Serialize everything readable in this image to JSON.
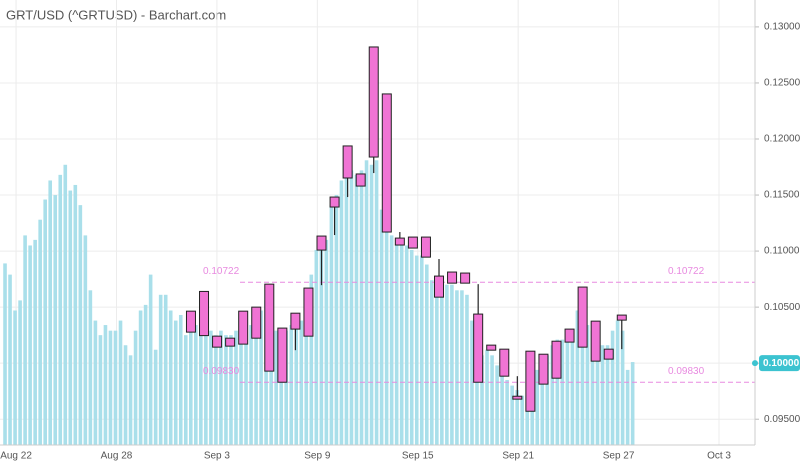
{
  "chart_data": {
    "type": "candlestick",
    "title": "GRT/USD (^GRTUSD) - Barchart.com",
    "xlim": [
      -0.96,
      44.15
    ],
    "xticks": [
      {
        "value": 0,
        "label": "Aug 22"
      },
      {
        "value": 6,
        "label": "Aug 28"
      },
      {
        "value": 12,
        "label": "Sep 3"
      },
      {
        "value": 18,
        "label": "Sep 9"
      },
      {
        "value": 24,
        "label": "Sep 15"
      },
      {
        "value": 30,
        "label": "Sep 21"
      },
      {
        "value": 36,
        "label": "Sep 27"
      },
      {
        "value": 42,
        "label": "Oct 3"
      }
    ],
    "ylim": [
      0.0927,
      0.1324
    ],
    "yticks": [
      {
        "value": 0.095,
        "label": "0.09500"
      },
      {
        "value": 0.1,
        "label": "0.10000"
      },
      {
        "value": 0.105,
        "label": "0.10500"
      },
      {
        "value": 0.11,
        "label": "0.11000"
      },
      {
        "value": 0.115,
        "label": "0.11500"
      },
      {
        "value": 0.12,
        "label": "0.12000"
      },
      {
        "value": 0.125,
        "label": "0.12500"
      },
      {
        "value": 0.13,
        "label": "0.13000"
      }
    ],
    "grid": true,
    "background_bars": {
      "color": "#a9dfea",
      "x": [
        -0.66,
        -0.36,
        -0.06,
        0.24,
        0.54,
        0.84,
        1.14,
        1.44,
        1.74,
        2.04,
        2.34,
        2.64,
        2.94,
        3.24,
        3.54,
        3.84,
        4.14,
        4.44,
        4.74,
        5.04,
        5.34,
        5.64,
        5.94,
        6.24,
        6.54,
        6.84,
        7.14,
        7.44,
        7.74,
        8.04,
        8.34,
        8.64,
        8.94,
        9.24,
        9.54,
        9.84,
        10.14,
        10.44,
        10.74,
        11.04,
        11.34,
        11.64,
        11.94,
        12.24,
        12.54,
        12.84,
        13.14,
        13.44,
        13.74,
        14.04,
        14.34,
        14.64,
        14.94,
        15.24,
        15.54,
        15.84,
        16.14,
        16.44,
        16.74,
        17.04,
        17.34,
        17.64,
        17.94,
        18.24,
        18.54,
        18.84,
        19.14,
        19.44,
        19.74,
        20.04,
        20.34,
        20.64,
        20.94,
        21.24,
        21.54,
        21.84,
        22.14,
        22.44,
        22.74,
        23.04,
        23.34,
        23.64,
        23.94,
        24.24,
        24.54,
        24.84,
        25.14,
        25.44,
        25.74,
        26.04,
        26.34,
        26.64,
        26.94,
        27.24,
        27.54,
        27.84,
        28.14,
        28.44,
        28.74,
        29.04,
        29.34,
        29.64,
        29.94,
        30.24,
        30.54,
        30.84,
        31.14,
        31.44,
        31.74,
        32.04,
        32.34,
        32.64,
        32.94,
        33.24,
        33.54,
        33.84,
        34.14,
        34.44,
        34.74,
        35.04,
        35.34,
        35.64,
        35.94,
        36.24,
        36.54,
        36.84
      ],
      "values": [
        0.1089,
        0.1079,
        0.1047,
        0.1056,
        0.1114,
        0.1105,
        0.111,
        0.1128,
        0.1146,
        0.1163,
        0.115,
        0.1168,
        0.1177,
        0.1154,
        0.1159,
        0.1141,
        0.1114,
        0.1065,
        0.1038,
        0.1025,
        0.1034,
        0.1029,
        0.1029,
        0.1038,
        0.1016,
        0.1007,
        0.1029,
        0.1047,
        0.1052,
        0.1079,
        0.1012,
        0.1061,
        0.1061,
        0.1047,
        0.1038,
        0.1043,
        0.1025,
        0.1038,
        0.1034,
        0.1029,
        0.1034,
        0.1029,
        0.1025,
        0.1029,
        0.1025,
        0.1025,
        0.1029,
        0.1025,
        0.1029,
        0.1034,
        0.1038,
        0.1047,
        0.1056,
        0.107,
        0.1029,
        0.1025,
        0.1029,
        0.1034,
        0.1038,
        0.1038,
        0.1065,
        0.1079,
        0.1101,
        0.1105,
        0.111,
        0.1141,
        0.115,
        0.1163,
        0.1168,
        0.1172,
        0.1168,
        0.1172,
        0.1181,
        0.1177,
        0.1181,
        0.1137,
        0.1119,
        0.1114,
        0.111,
        0.1105,
        0.1105,
        0.1101,
        0.1096,
        0.1096,
        0.1088,
        0.1074,
        0.107,
        0.1065,
        0.107,
        0.107,
        0.1065,
        0.1065,
        0.1061,
        0.1038,
        0.1012,
        0.1007,
        0.1012,
        0.1007,
        0.0998,
        0.0989,
        0.0985,
        0.098,
        0.0976,
        0.0971,
        0.0971,
        0.0985,
        0.0994,
        0.1003,
        0.1007,
        0.1016,
        0.1021,
        0.1021,
        0.1025,
        0.1029,
        0.1047,
        0.1038,
        0.1034,
        0.1029,
        0.1021,
        0.1016,
        0.1016,
        0.1029,
        0.1038,
        0.1029,
        0.0994,
        0.1001
      ]
    },
    "candles": {
      "color": "#f074d4",
      "x": [
        10.45,
        11.23,
        12.01,
        12.79,
        13.57,
        14.35,
        15.13,
        15.91,
        16.69,
        17.47,
        18.25,
        19.03,
        19.81,
        20.59,
        21.37,
        22.15,
        22.93,
        23.71,
        24.49,
        25.27,
        26.05,
        26.83,
        27.61,
        28.39,
        29.17,
        29.95,
        30.73,
        31.51,
        32.29,
        33.07,
        33.85,
        34.63,
        35.41,
        36.19
      ],
      "open": [
        0.10464,
        0.1064,
        0.10241,
        0.10223,
        0.10464,
        0.105,
        0.10705,
        0.10313,
        0.10446,
        0.1067,
        0.11134,
        0.11482,
        0.11938,
        0.11688,
        0.12821,
        0.12402,
        0.11116,
        0.11125,
        0.11125,
        0.10777,
        0.10813,
        0.10804,
        0.10438,
        0.10161,
        0.10125,
        0.09705,
        0.10107,
        0.1008,
        0.10196,
        0.10304,
        0.10679,
        0.10375,
        0.10125,
        0.10429
      ],
      "high": [
        0.10464,
        0.1064,
        0.10241,
        0.10223,
        0.10464,
        0.105,
        0.10705,
        0.10313,
        0.10446,
        0.1067,
        0.11134,
        0.11482,
        0.11938,
        0.11688,
        0.12821,
        0.12402,
        0.1117,
        0.11125,
        0.11125,
        0.10929,
        0.10813,
        0.10804,
        0.10705,
        0.10161,
        0.10125,
        0.09884,
        0.10107,
        0.1008,
        0.10196,
        0.10304,
        0.10679,
        0.10375,
        0.10125,
        0.10429
      ],
      "low": [
        0.10277,
        0.10246,
        0.10143,
        0.10152,
        0.1017,
        0.10223,
        0.09929,
        0.0983,
        0.10116,
        0.10241,
        0.10696,
        0.11143,
        0.11482,
        0.1158,
        0.11696,
        0.1117,
        0.11054,
        0.11027,
        0.10946,
        0.10589,
        0.10714,
        0.10714,
        0.0983,
        0.10116,
        0.09884,
        0.09679,
        0.09571,
        0.09813,
        0.09866,
        0.10188,
        0.10143,
        0.10018,
        0.10036,
        0.10125
      ],
      "close": [
        0.10277,
        0.10246,
        0.10143,
        0.10152,
        0.1017,
        0.10223,
        0.09929,
        0.0983,
        0.10304,
        0.10241,
        0.11009,
        0.11393,
        0.11652,
        0.1158,
        0.11839,
        0.1117,
        0.11054,
        0.11027,
        0.10946,
        0.10589,
        0.10714,
        0.10714,
        0.0983,
        0.10116,
        0.09884,
        0.09679,
        0.09571,
        0.09813,
        0.09866,
        0.10188,
        0.10143,
        0.10018,
        0.10036,
        0.10384
      ]
    },
    "levels": {
      "color": "#e88ae0",
      "values": [
        {
          "value": 0.10722,
          "label": "0.10722"
        },
        {
          "value": 0.0983,
          "label": "0.09830"
        }
      ]
    },
    "last_price": {
      "value": 0.1,
      "label": "0.10000",
      "color": "#3cc3d0"
    }
  }
}
